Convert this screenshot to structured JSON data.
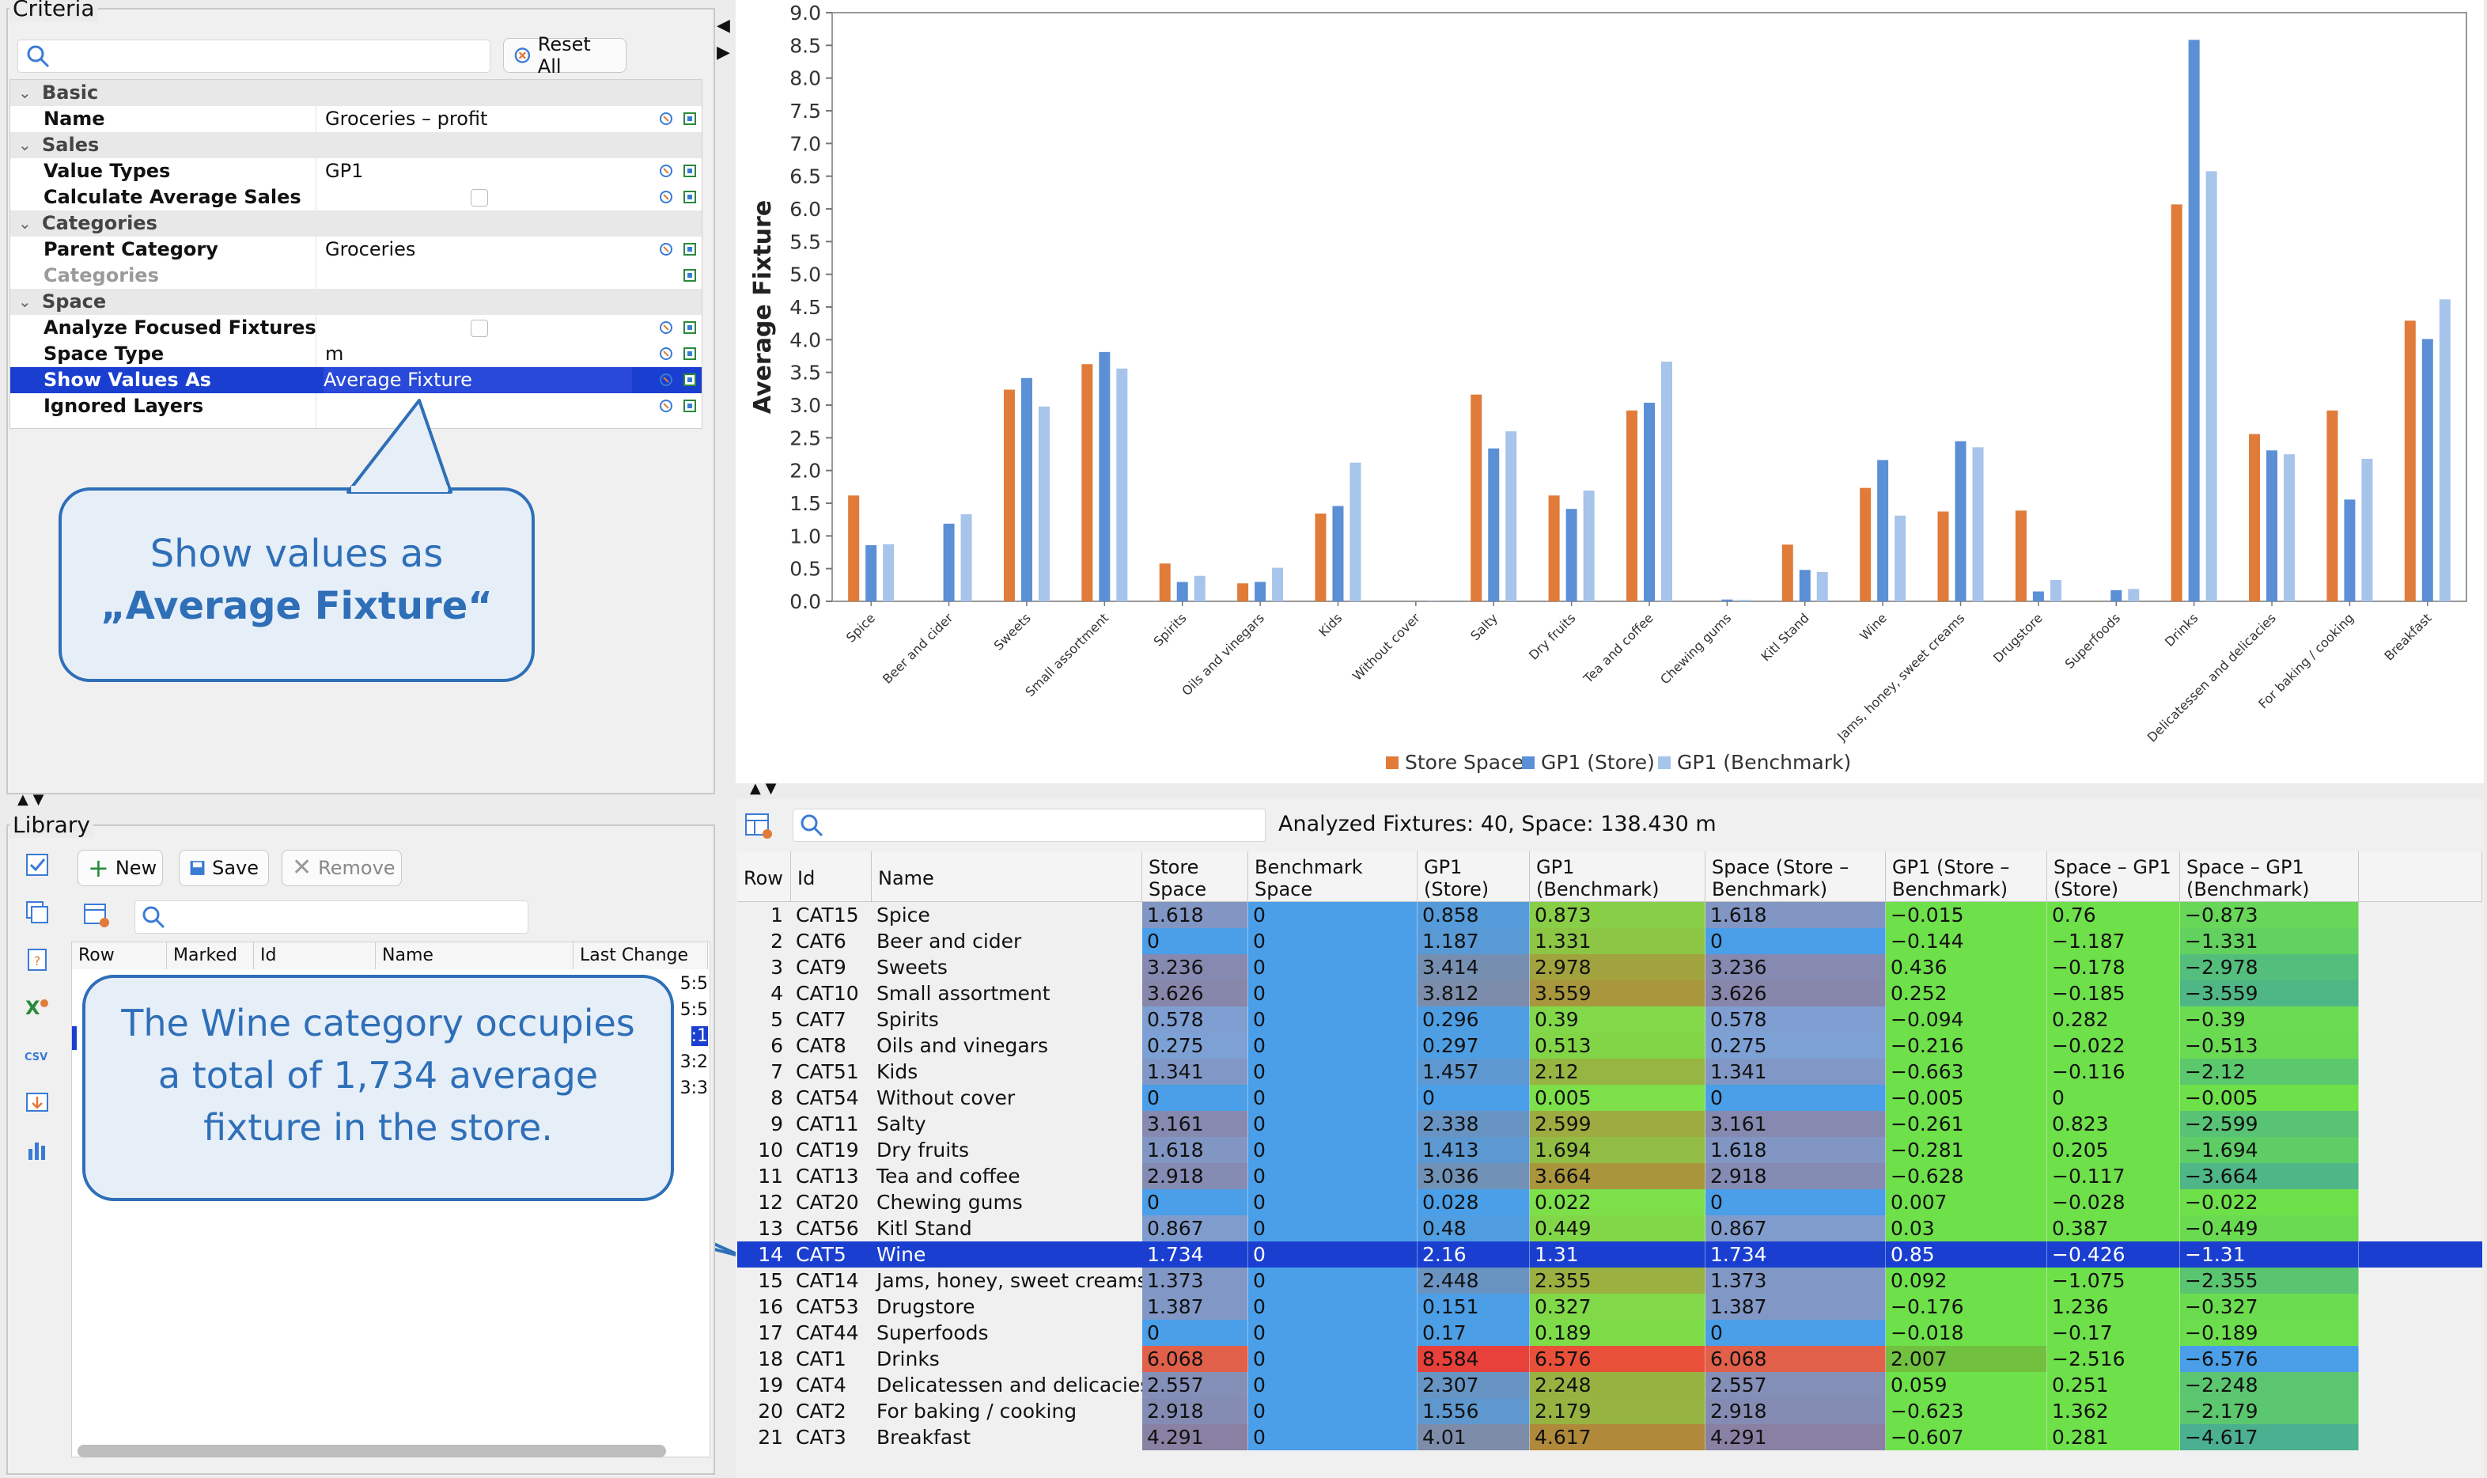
{
  "criteria": {
    "title": "Criteria",
    "reset_label": "Reset All",
    "rows": [
      {
        "type": "section",
        "name": "Basic"
      },
      {
        "type": "prop",
        "name": "Name",
        "value": "Groceries – profit"
      },
      {
        "type": "section",
        "name": "Sales"
      },
      {
        "type": "prop",
        "name": "Value Types",
        "value": "GP1"
      },
      {
        "type": "prop",
        "name": "Calculate Average Sales",
        "value": "",
        "checkbox": true
      },
      {
        "type": "section",
        "name": "Categories"
      },
      {
        "type": "prop",
        "name": "Parent Category",
        "value": "Groceries"
      },
      {
        "type": "prop",
        "name": "Categories",
        "value": "",
        "disabled": true
      },
      {
        "type": "section",
        "name": "Space"
      },
      {
        "type": "prop",
        "name": "Analyze Focused Fixtures",
        "value": "",
        "checkbox": true
      },
      {
        "type": "prop",
        "name": "Space Type",
        "value": "m"
      },
      {
        "type": "prop",
        "name": "Show Values As",
        "value": "Average Fixture",
        "selected": true
      },
      {
        "type": "prop",
        "name": "Ignored Layers",
        "value": ""
      }
    ]
  },
  "callout1": {
    "line1": "Show values as",
    "line2": "„Average Fixture“"
  },
  "callout2": {
    "text": "The Wine category occupies a total of 1,734 average fixture in the store."
  },
  "library": {
    "title": "Library",
    "new_label": "New",
    "save_label": "Save",
    "remove_label": "Remove",
    "columns": [
      "Row",
      "Marked",
      "Id",
      "Name",
      "Last Change"
    ],
    "partial_values": [
      "5:5",
      "5:5",
      ":1",
      "3:2",
      "3:3"
    ]
  },
  "colors": {
    "store_space": "#e07b39",
    "gp1_store": "#5b8fd6",
    "gp1_benchmark": "#a7c4ea",
    "selection": "#1a3fd0",
    "callout_border": "#2e6fb8"
  },
  "chart_data": {
    "type": "bar",
    "ylabel": "Average Fixture",
    "ylim": [
      0,
      9.0
    ],
    "yticks": [
      "0.0",
      "0.5",
      "1.0",
      "1.5",
      "2.0",
      "2.5",
      "3.0",
      "3.5",
      "4.0",
      "4.5",
      "5.0",
      "5.5",
      "6.0",
      "6.5",
      "7.0",
      "7.5",
      "8.0",
      "8.5",
      "9.0"
    ],
    "legend_position": "bottom",
    "categories": [
      "Spice",
      "Beer and cider",
      "Sweets",
      "Small assortment",
      "Spirits",
      "Oils and vinegars",
      "Kids",
      "Without cover",
      "Salty",
      "Dry fruits",
      "Tea and coffee",
      "Chewing gums",
      "Kitl Stand",
      "Wine",
      "Jams, honey, sweet creams",
      "Drugstore",
      "Superfoods",
      "Drinks",
      "Delicatessen and delicacies",
      "For baking / cooking",
      "Breakfast"
    ],
    "series": [
      {
        "name": "Store Space",
        "values": [
          1.618,
          0,
          3.236,
          3.626,
          0.578,
          0.275,
          1.341,
          0,
          3.161,
          1.618,
          2.918,
          0,
          0.867,
          1.734,
          1.373,
          1.387,
          0,
          6.068,
          2.557,
          2.918,
          4.291
        ]
      },
      {
        "name": "GP1 (Store)",
        "values": [
          0.858,
          1.187,
          3.414,
          3.812,
          0.296,
          0.297,
          1.457,
          0,
          2.338,
          1.413,
          3.036,
          0.028,
          0.48,
          2.16,
          2.448,
          0.151,
          0.17,
          8.584,
          2.307,
          1.556,
          4.01
        ]
      },
      {
        "name": "GP1 (Benchmark)",
        "values": [
          0.873,
          1.331,
          2.978,
          3.559,
          0.39,
          0.513,
          2.12,
          0.005,
          2.599,
          1.694,
          3.664,
          0.022,
          0.449,
          1.31,
          2.355,
          0.327,
          0.189,
          6.576,
          2.248,
          2.179,
          4.617
        ]
      }
    ]
  },
  "table": {
    "summary": "Analyzed Fixtures: 40, Space: 138.430 m",
    "columns": [
      "Row",
      "Id",
      "Name",
      "Store Space",
      "Benchmark Space",
      "GP1 (Store)",
      "GP1 (Benchmark)",
      "Space (Store – Benchmark)",
      "GP1 (Store – Benchmark)",
      "Space – GP1 (Store)",
      "Space – GP1 (Benchmark)"
    ],
    "rows": [
      [
        "1",
        "CAT15",
        "Spice",
        "1.618",
        "0",
        "0.858",
        "0.873",
        "1.618",
        "−0.015",
        "0.76",
        "−0.873"
      ],
      [
        "2",
        "CAT6",
        "Beer and cider",
        "0",
        "0",
        "1.187",
        "1.331",
        "0",
        "−0.144",
        "−1.187",
        "−1.331"
      ],
      [
        "3",
        "CAT9",
        "Sweets",
        "3.236",
        "0",
        "3.414",
        "2.978",
        "3.236",
        "0.436",
        "−0.178",
        "−2.978"
      ],
      [
        "4",
        "CAT10",
        "Small assortment",
        "3.626",
        "0",
        "3.812",
        "3.559",
        "3.626",
        "0.252",
        "−0.185",
        "−3.559"
      ],
      [
        "5",
        "CAT7",
        "Spirits",
        "0.578",
        "0",
        "0.296",
        "0.39",
        "0.578",
        "−0.094",
        "0.282",
        "−0.39"
      ],
      [
        "6",
        "CAT8",
        "Oils and vinegars",
        "0.275",
        "0",
        "0.297",
        "0.513",
        "0.275",
        "−0.216",
        "−0.022",
        "−0.513"
      ],
      [
        "7",
        "CAT51",
        "Kids",
        "1.341",
        "0",
        "1.457",
        "2.12",
        "1.341",
        "−0.663",
        "−0.116",
        "−2.12"
      ],
      [
        "8",
        "CAT54",
        "Without cover",
        "0",
        "0",
        "0",
        "0.005",
        "0",
        "−0.005",
        "0",
        "−0.005"
      ],
      [
        "9",
        "CAT11",
        "Salty",
        "3.161",
        "0",
        "2.338",
        "2.599",
        "3.161",
        "−0.261",
        "0.823",
        "−2.599"
      ],
      [
        "10",
        "CAT19",
        "Dry fruits",
        "1.618",
        "0",
        "1.413",
        "1.694",
        "1.618",
        "−0.281",
        "0.205",
        "−1.694"
      ],
      [
        "11",
        "CAT13",
        "Tea and coffee",
        "2.918",
        "0",
        "3.036",
        "3.664",
        "2.918",
        "−0.628",
        "−0.117",
        "−3.664"
      ],
      [
        "12",
        "CAT20",
        "Chewing gums",
        "0",
        "0",
        "0.028",
        "0.022",
        "0",
        "0.007",
        "−0.028",
        "−0.022"
      ],
      [
        "13",
        "CAT56",
        "Kitl Stand",
        "0.867",
        "0",
        "0.48",
        "0.449",
        "0.867",
        "0.03",
        "0.387",
        "−0.449"
      ],
      [
        "14",
        "CAT5",
        "Wine",
        "1.734",
        "0",
        "2.16",
        "1.31",
        "1.734",
        "0.85",
        "−0.426",
        "−1.31"
      ],
      [
        "15",
        "CAT14",
        "Jams, honey, sweet creams",
        "1.373",
        "0",
        "2.448",
        "2.355",
        "1.373",
        "0.092",
        "−1.075",
        "−2.355"
      ],
      [
        "16",
        "CAT53",
        "Drugstore",
        "1.387",
        "0",
        "0.151",
        "0.327",
        "1.387",
        "−0.176",
        "1.236",
        "−0.327"
      ],
      [
        "17",
        "CAT44",
        "Superfoods",
        "0",
        "0",
        "0.17",
        "0.189",
        "0",
        "−0.018",
        "−0.17",
        "−0.189"
      ],
      [
        "18",
        "CAT1",
        "Drinks",
        "6.068",
        "0",
        "8.584",
        "6.576",
        "6.068",
        "2.007",
        "−2.516",
        "−6.576"
      ],
      [
        "19",
        "CAT4",
        "Delicatessen and delicacies",
        "2.557",
        "0",
        "2.307",
        "2.248",
        "2.557",
        "0.059",
        "0.251",
        "−2.248"
      ],
      [
        "20",
        "CAT2",
        "For baking / cooking",
        "2.918",
        "0",
        "1.556",
        "2.179",
        "2.918",
        "−0.623",
        "1.362",
        "−2.179"
      ],
      [
        "21",
        "CAT3",
        "Breakfast",
        "4.291",
        "0",
        "4.01",
        "4.617",
        "4.291",
        "−0.607",
        "0.281",
        "−4.617"
      ]
    ],
    "selected_row": "14"
  }
}
